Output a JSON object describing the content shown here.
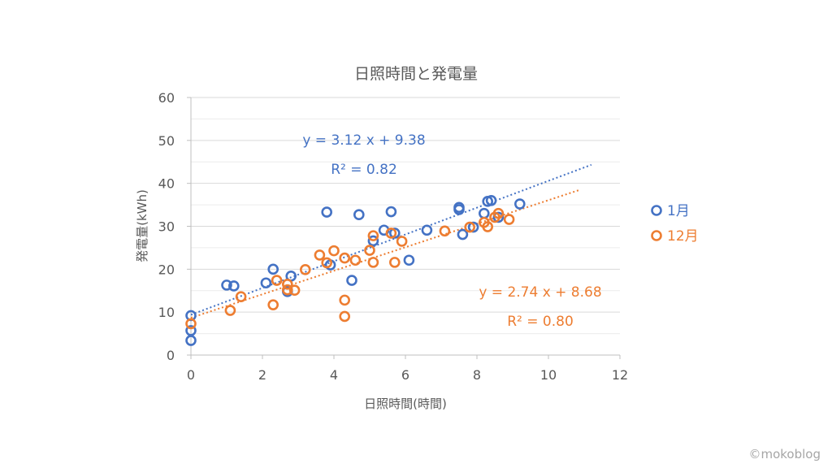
{
  "chart_data": {
    "type": "scatter",
    "title": "日照時間と発電量",
    "xlabel": "日照時間(時間)",
    "ylabel": "発電量(kWh)",
    "xlim": [
      0,
      12
    ],
    "ylim": [
      0,
      60
    ],
    "x_ticks": [
      0,
      2,
      4,
      6,
      8,
      10,
      12
    ],
    "y_ticks": [
      0,
      10,
      20,
      30,
      40,
      50,
      60
    ],
    "grid": true,
    "legend_position": "right",
    "series": [
      {
        "name": "1月",
        "color": "#4472c4",
        "points": [
          [
            0,
            9.2
          ],
          [
            0,
            5.7
          ],
          [
            0,
            3.4
          ],
          [
            1.0,
            16.3
          ],
          [
            1.2,
            16.1
          ],
          [
            2.1,
            16.8
          ],
          [
            2.3,
            20.0
          ],
          [
            2.7,
            14.8
          ],
          [
            2.8,
            18.4
          ],
          [
            3.8,
            33.3
          ],
          [
            3.9,
            21.0
          ],
          [
            4.5,
            17.4
          ],
          [
            4.7,
            32.7
          ],
          [
            5.1,
            26.6
          ],
          [
            5.4,
            29.1
          ],
          [
            5.6,
            33.4
          ],
          [
            5.7,
            28.4
          ],
          [
            6.1,
            22.1
          ],
          [
            6.6,
            29.1
          ],
          [
            7.5,
            33.9
          ],
          [
            7.5,
            34.4
          ],
          [
            7.6,
            28.1
          ],
          [
            7.9,
            29.8
          ],
          [
            8.2,
            33.0
          ],
          [
            8.3,
            35.8
          ],
          [
            8.4,
            36.0
          ],
          [
            8.6,
            32.1
          ],
          [
            9.2,
            35.2
          ]
        ],
        "trendline": {
          "equation": "y = 3.12 x + 9.38",
          "r2": "R² = 0.82",
          "slope": 3.12,
          "intercept": 9.38,
          "x_range": [
            0,
            11.2
          ]
        }
      },
      {
        "name": "12月",
        "color": "#ed7d31",
        "points": [
          [
            0,
            7.3
          ],
          [
            1.1,
            10.4
          ],
          [
            1.4,
            13.6
          ],
          [
            2.3,
            11.7
          ],
          [
            2.4,
            17.4
          ],
          [
            2.7,
            16.5
          ],
          [
            2.7,
            15.2
          ],
          [
            2.9,
            15.1
          ],
          [
            3.2,
            19.9
          ],
          [
            3.6,
            23.3
          ],
          [
            3.8,
            21.5
          ],
          [
            4.0,
            24.3
          ],
          [
            4.3,
            22.6
          ],
          [
            4.3,
            12.8
          ],
          [
            4.3,
            9.0
          ],
          [
            4.6,
            22.1
          ],
          [
            5.0,
            24.4
          ],
          [
            5.1,
            21.6
          ],
          [
            5.1,
            27.8
          ],
          [
            5.6,
            28.4
          ],
          [
            5.7,
            21.6
          ],
          [
            5.9,
            26.5
          ],
          [
            7.1,
            28.9
          ],
          [
            7.8,
            29.8
          ],
          [
            8.2,
            30.9
          ],
          [
            8.3,
            29.9
          ],
          [
            8.5,
            32.1
          ],
          [
            8.6,
            33.0
          ],
          [
            8.9,
            31.6
          ]
        ],
        "trendline": {
          "equation": "y = 2.74 x + 8.68",
          "r2": "R² = 0.80",
          "slope": 2.74,
          "intercept": 8.68,
          "x_range": [
            0,
            10.9
          ]
        }
      }
    ]
  },
  "watermark": "©mokoblog"
}
